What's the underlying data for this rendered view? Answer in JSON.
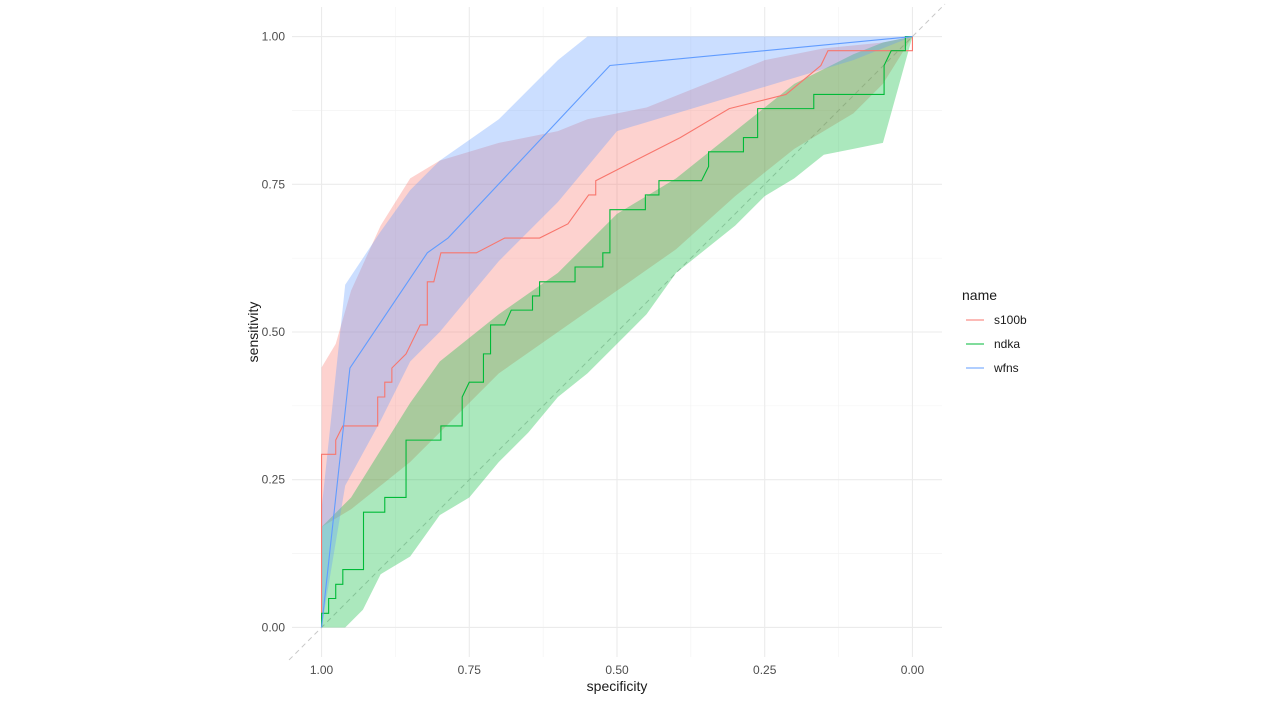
{
  "chart_data": {
    "type": "line",
    "xlabel": "specificity",
    "ylabel": "sensitivity",
    "xlim": [
      1.0,
      0.0
    ],
    "ylim": [
      0.0,
      1.0
    ],
    "x_reversed": true,
    "x_ticks": [
      1.0,
      0.75,
      0.5,
      0.25,
      0.0
    ],
    "x_tick_labels": [
      "1.00",
      "0.75",
      "0.50",
      "0.25",
      "0.00"
    ],
    "y_ticks": [
      0.0,
      0.25,
      0.5,
      0.75,
      1.0
    ],
    "y_tick_labels": [
      "0.00",
      "0.25",
      "0.50",
      "0.75",
      "1.00"
    ],
    "grid": true,
    "diagonal_reference": true,
    "legend": {
      "title": "name",
      "placement": "right",
      "entries": [
        "s100b",
        "ndka",
        "wfns"
      ]
    },
    "series": [
      {
        "name": "s100b",
        "color": "#F8766D",
        "line": [
          [
            1.0,
            0.0
          ],
          [
            1.0,
            0.293
          ],
          [
            0.976,
            0.293
          ],
          [
            0.976,
            0.317
          ],
          [
            0.964,
            0.341
          ],
          [
            0.905,
            0.341
          ],
          [
            0.905,
            0.39
          ],
          [
            0.893,
            0.39
          ],
          [
            0.893,
            0.415
          ],
          [
            0.881,
            0.415
          ],
          [
            0.881,
            0.439
          ],
          [
            0.857,
            0.463
          ],
          [
            0.833,
            0.512
          ],
          [
            0.821,
            0.512
          ],
          [
            0.821,
            0.585
          ],
          [
            0.81,
            0.585
          ],
          [
            0.798,
            0.634
          ],
          [
            0.738,
            0.634
          ],
          [
            0.69,
            0.659
          ],
          [
            0.631,
            0.659
          ],
          [
            0.583,
            0.683
          ],
          [
            0.548,
            0.732
          ],
          [
            0.536,
            0.732
          ],
          [
            0.536,
            0.756
          ],
          [
            0.393,
            0.829
          ],
          [
            0.31,
            0.878
          ],
          [
            0.214,
            0.902
          ],
          [
            0.155,
            0.951
          ],
          [
            0.143,
            0.976
          ],
          [
            0.0,
            0.976
          ],
          [
            0.0,
            1.0
          ]
        ],
        "band_upper": [
          [
            1.0,
            0.44
          ],
          [
            0.976,
            0.48
          ],
          [
            0.95,
            0.57
          ],
          [
            0.9,
            0.68
          ],
          [
            0.85,
            0.76
          ],
          [
            0.8,
            0.79
          ],
          [
            0.7,
            0.82
          ],
          [
            0.6,
            0.84
          ],
          [
            0.55,
            0.86
          ],
          [
            0.45,
            0.88
          ],
          [
            0.35,
            0.92
          ],
          [
            0.25,
            0.96
          ],
          [
            0.15,
            0.98
          ],
          [
            0.05,
            0.99
          ],
          [
            0.0,
            1.0
          ]
        ],
        "band_lower": [
          [
            1.0,
            0.17
          ],
          [
            0.95,
            0.2
          ],
          [
            0.9,
            0.24
          ],
          [
            0.85,
            0.28
          ],
          [
            0.8,
            0.33
          ],
          [
            0.75,
            0.38
          ],
          [
            0.7,
            0.43
          ],
          [
            0.6,
            0.5
          ],
          [
            0.5,
            0.57
          ],
          [
            0.4,
            0.64
          ],
          [
            0.3,
            0.73
          ],
          [
            0.2,
            0.81
          ],
          [
            0.1,
            0.87
          ],
          [
            0.05,
            0.92
          ],
          [
            0.0,
            1.0
          ]
        ]
      },
      {
        "name": "ndka",
        "color": "#00BA38",
        "line": [
          [
            1.0,
            0.0
          ],
          [
            1.0,
            0.024
          ],
          [
            0.988,
            0.024
          ],
          [
            0.988,
            0.049
          ],
          [
            0.976,
            0.049
          ],
          [
            0.976,
            0.073
          ],
          [
            0.964,
            0.073
          ],
          [
            0.964,
            0.098
          ],
          [
            0.929,
            0.098
          ],
          [
            0.929,
            0.195
          ],
          [
            0.893,
            0.195
          ],
          [
            0.893,
            0.22
          ],
          [
            0.857,
            0.22
          ],
          [
            0.857,
            0.317
          ],
          [
            0.798,
            0.317
          ],
          [
            0.798,
            0.341
          ],
          [
            0.762,
            0.341
          ],
          [
            0.762,
            0.39
          ],
          [
            0.75,
            0.415
          ],
          [
            0.726,
            0.415
          ],
          [
            0.726,
            0.463
          ],
          [
            0.714,
            0.463
          ],
          [
            0.714,
            0.512
          ],
          [
            0.69,
            0.512
          ],
          [
            0.679,
            0.537
          ],
          [
            0.643,
            0.537
          ],
          [
            0.643,
            0.561
          ],
          [
            0.631,
            0.561
          ],
          [
            0.631,
            0.585
          ],
          [
            0.571,
            0.585
          ],
          [
            0.571,
            0.61
          ],
          [
            0.524,
            0.61
          ],
          [
            0.524,
            0.634
          ],
          [
            0.512,
            0.634
          ],
          [
            0.512,
            0.707
          ],
          [
            0.452,
            0.707
          ],
          [
            0.452,
            0.732
          ],
          [
            0.429,
            0.732
          ],
          [
            0.429,
            0.756
          ],
          [
            0.357,
            0.756
          ],
          [
            0.345,
            0.78
          ],
          [
            0.345,
            0.805
          ],
          [
            0.286,
            0.805
          ],
          [
            0.286,
            0.829
          ],
          [
            0.262,
            0.829
          ],
          [
            0.262,
            0.878
          ],
          [
            0.167,
            0.878
          ],
          [
            0.167,
            0.902
          ],
          [
            0.048,
            0.902
          ],
          [
            0.048,
            0.951
          ],
          [
            0.036,
            0.976
          ],
          [
            0.012,
            0.976
          ],
          [
            0.012,
            1.0
          ],
          [
            0.0,
            1.0
          ]
        ],
        "band_upper": [
          [
            1.0,
            0.17
          ],
          [
            0.95,
            0.22
          ],
          [
            0.9,
            0.3
          ],
          [
            0.85,
            0.38
          ],
          [
            0.8,
            0.45
          ],
          [
            0.7,
            0.53
          ],
          [
            0.6,
            0.6
          ],
          [
            0.5,
            0.7
          ],
          [
            0.4,
            0.76
          ],
          [
            0.3,
            0.84
          ],
          [
            0.2,
            0.92
          ],
          [
            0.1,
            0.97
          ],
          [
            0.05,
            0.99
          ],
          [
            0.0,
            1.0
          ]
        ],
        "band_lower": [
          [
            1.0,
            0.0
          ],
          [
            0.96,
            0.0
          ],
          [
            0.93,
            0.03
          ],
          [
            0.9,
            0.09
          ],
          [
            0.85,
            0.12
          ],
          [
            0.8,
            0.19
          ],
          [
            0.75,
            0.22
          ],
          [
            0.7,
            0.28
          ],
          [
            0.65,
            0.33
          ],
          [
            0.6,
            0.39
          ],
          [
            0.55,
            0.43
          ],
          [
            0.5,
            0.48
          ],
          [
            0.45,
            0.53
          ],
          [
            0.4,
            0.6
          ],
          [
            0.35,
            0.64
          ],
          [
            0.3,
            0.68
          ],
          [
            0.25,
            0.73
          ],
          [
            0.2,
            0.76
          ],
          [
            0.15,
            0.8
          ],
          [
            0.1,
            0.81
          ],
          [
            0.05,
            0.82
          ],
          [
            0.0,
            1.0
          ]
        ]
      },
      {
        "name": "wfns",
        "color": "#619CFF",
        "line": [
          [
            1.0,
            0.0
          ],
          [
            0.976,
            0.22
          ],
          [
            0.952,
            0.439
          ],
          [
            0.821,
            0.634
          ],
          [
            0.786,
            0.659
          ],
          [
            0.512,
            0.951
          ],
          [
            0.0,
            1.0
          ]
        ],
        "band_upper": [
          [
            1.0,
            0.2
          ],
          [
            0.96,
            0.58
          ],
          [
            0.9,
            0.67
          ],
          [
            0.85,
            0.74
          ],
          [
            0.8,
            0.79
          ],
          [
            0.7,
            0.86
          ],
          [
            0.6,
            0.96
          ],
          [
            0.55,
            1.0
          ],
          [
            0.0,
            1.0
          ]
        ],
        "band_lower": [
          [
            1.0,
            0.0
          ],
          [
            0.96,
            0.24
          ],
          [
            0.9,
            0.35
          ],
          [
            0.85,
            0.45
          ],
          [
            0.8,
            0.5
          ],
          [
            0.75,
            0.56
          ],
          [
            0.7,
            0.62
          ],
          [
            0.6,
            0.72
          ],
          [
            0.5,
            0.84
          ],
          [
            0.4,
            0.87
          ],
          [
            0.3,
            0.9
          ],
          [
            0.2,
            0.93
          ],
          [
            0.1,
            0.96
          ],
          [
            0.0,
            1.0
          ]
        ]
      }
    ]
  }
}
